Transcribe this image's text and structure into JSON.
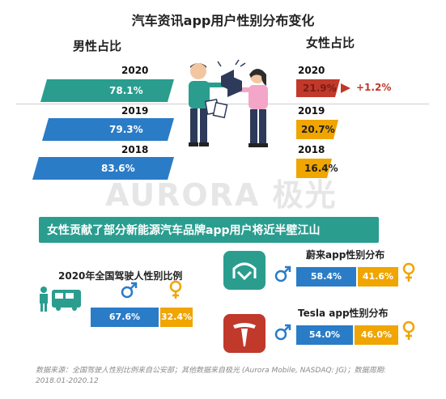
{
  "title": "汽车资讯app用户性别分布变化",
  "male_header": "男性占比",
  "female_header": "女性占比",
  "years": [
    "2020",
    "2019",
    "2018"
  ],
  "male_pct": [
    "78.1%",
    "79.3%",
    "83.6%"
  ],
  "female_pct": [
    "21.9%",
    "20.7%",
    "16.4%"
  ],
  "female_change_2020": "+1.2%",
  "watermark": "AURORA 极光",
  "banner": "女性贡献了部分新能源汽车品牌app用户将近半壁江山",
  "national": {
    "title": "2020年全国驾驶人性别比例",
    "male": "67.6%",
    "female": "32.4%"
  },
  "nio": {
    "title": "蔚来app性别分布",
    "male": "58.4%",
    "female": "41.6%"
  },
  "tesla": {
    "title": "Tesla app性别分布",
    "male": "54.0%",
    "female": "46.0%"
  },
  "footer_line1": "数据来源：全国驾驶人性别比例来自公安部；其他数据来自极光 (Aurora Mobile, NASDAQ: JG)；数据周期:",
  "footer_line2": "2018.01-2020.12",
  "colors": {
    "teal": "#2a9d8f",
    "blue": "#2a7cc7",
    "red": "#c0392b",
    "orange": "#f0a500",
    "gray": "#999999"
  },
  "chart_data": [
    {
      "type": "bar",
      "title": "汽车资讯app用户性别分布变化",
      "categories": [
        "2020",
        "2019",
        "2018"
      ],
      "series": [
        {
          "name": "男性占比",
          "values": [
            78.1,
            79.3,
            83.6
          ]
        },
        {
          "name": "女性占比",
          "values": [
            21.9,
            20.7,
            16.4
          ]
        }
      ]
    },
    {
      "type": "bar",
      "title": "2020年全国驾驶人性别比例",
      "categories": [
        "2020"
      ],
      "series": [
        {
          "values": [
            67.6
          ]
        },
        {
          "values": [
            32.4
          ]
        }
      ]
    },
    {
      "type": "bar",
      "title": "蔚来app性别分布",
      "categories": [
        "蔚来"
      ],
      "series": [
        {
          "values": [
            58.4
          ]
        },
        {
          "values": [
            41.6
          ]
        }
      ]
    },
    {
      "type": "bar",
      "title": "Tesla app性别分布",
      "categories": [
        "Tesla"
      ],
      "series": [
        {
          "values": [
            54.0
          ]
        },
        {
          "values": [
            46.0
          ]
        }
      ]
    }
  ]
}
